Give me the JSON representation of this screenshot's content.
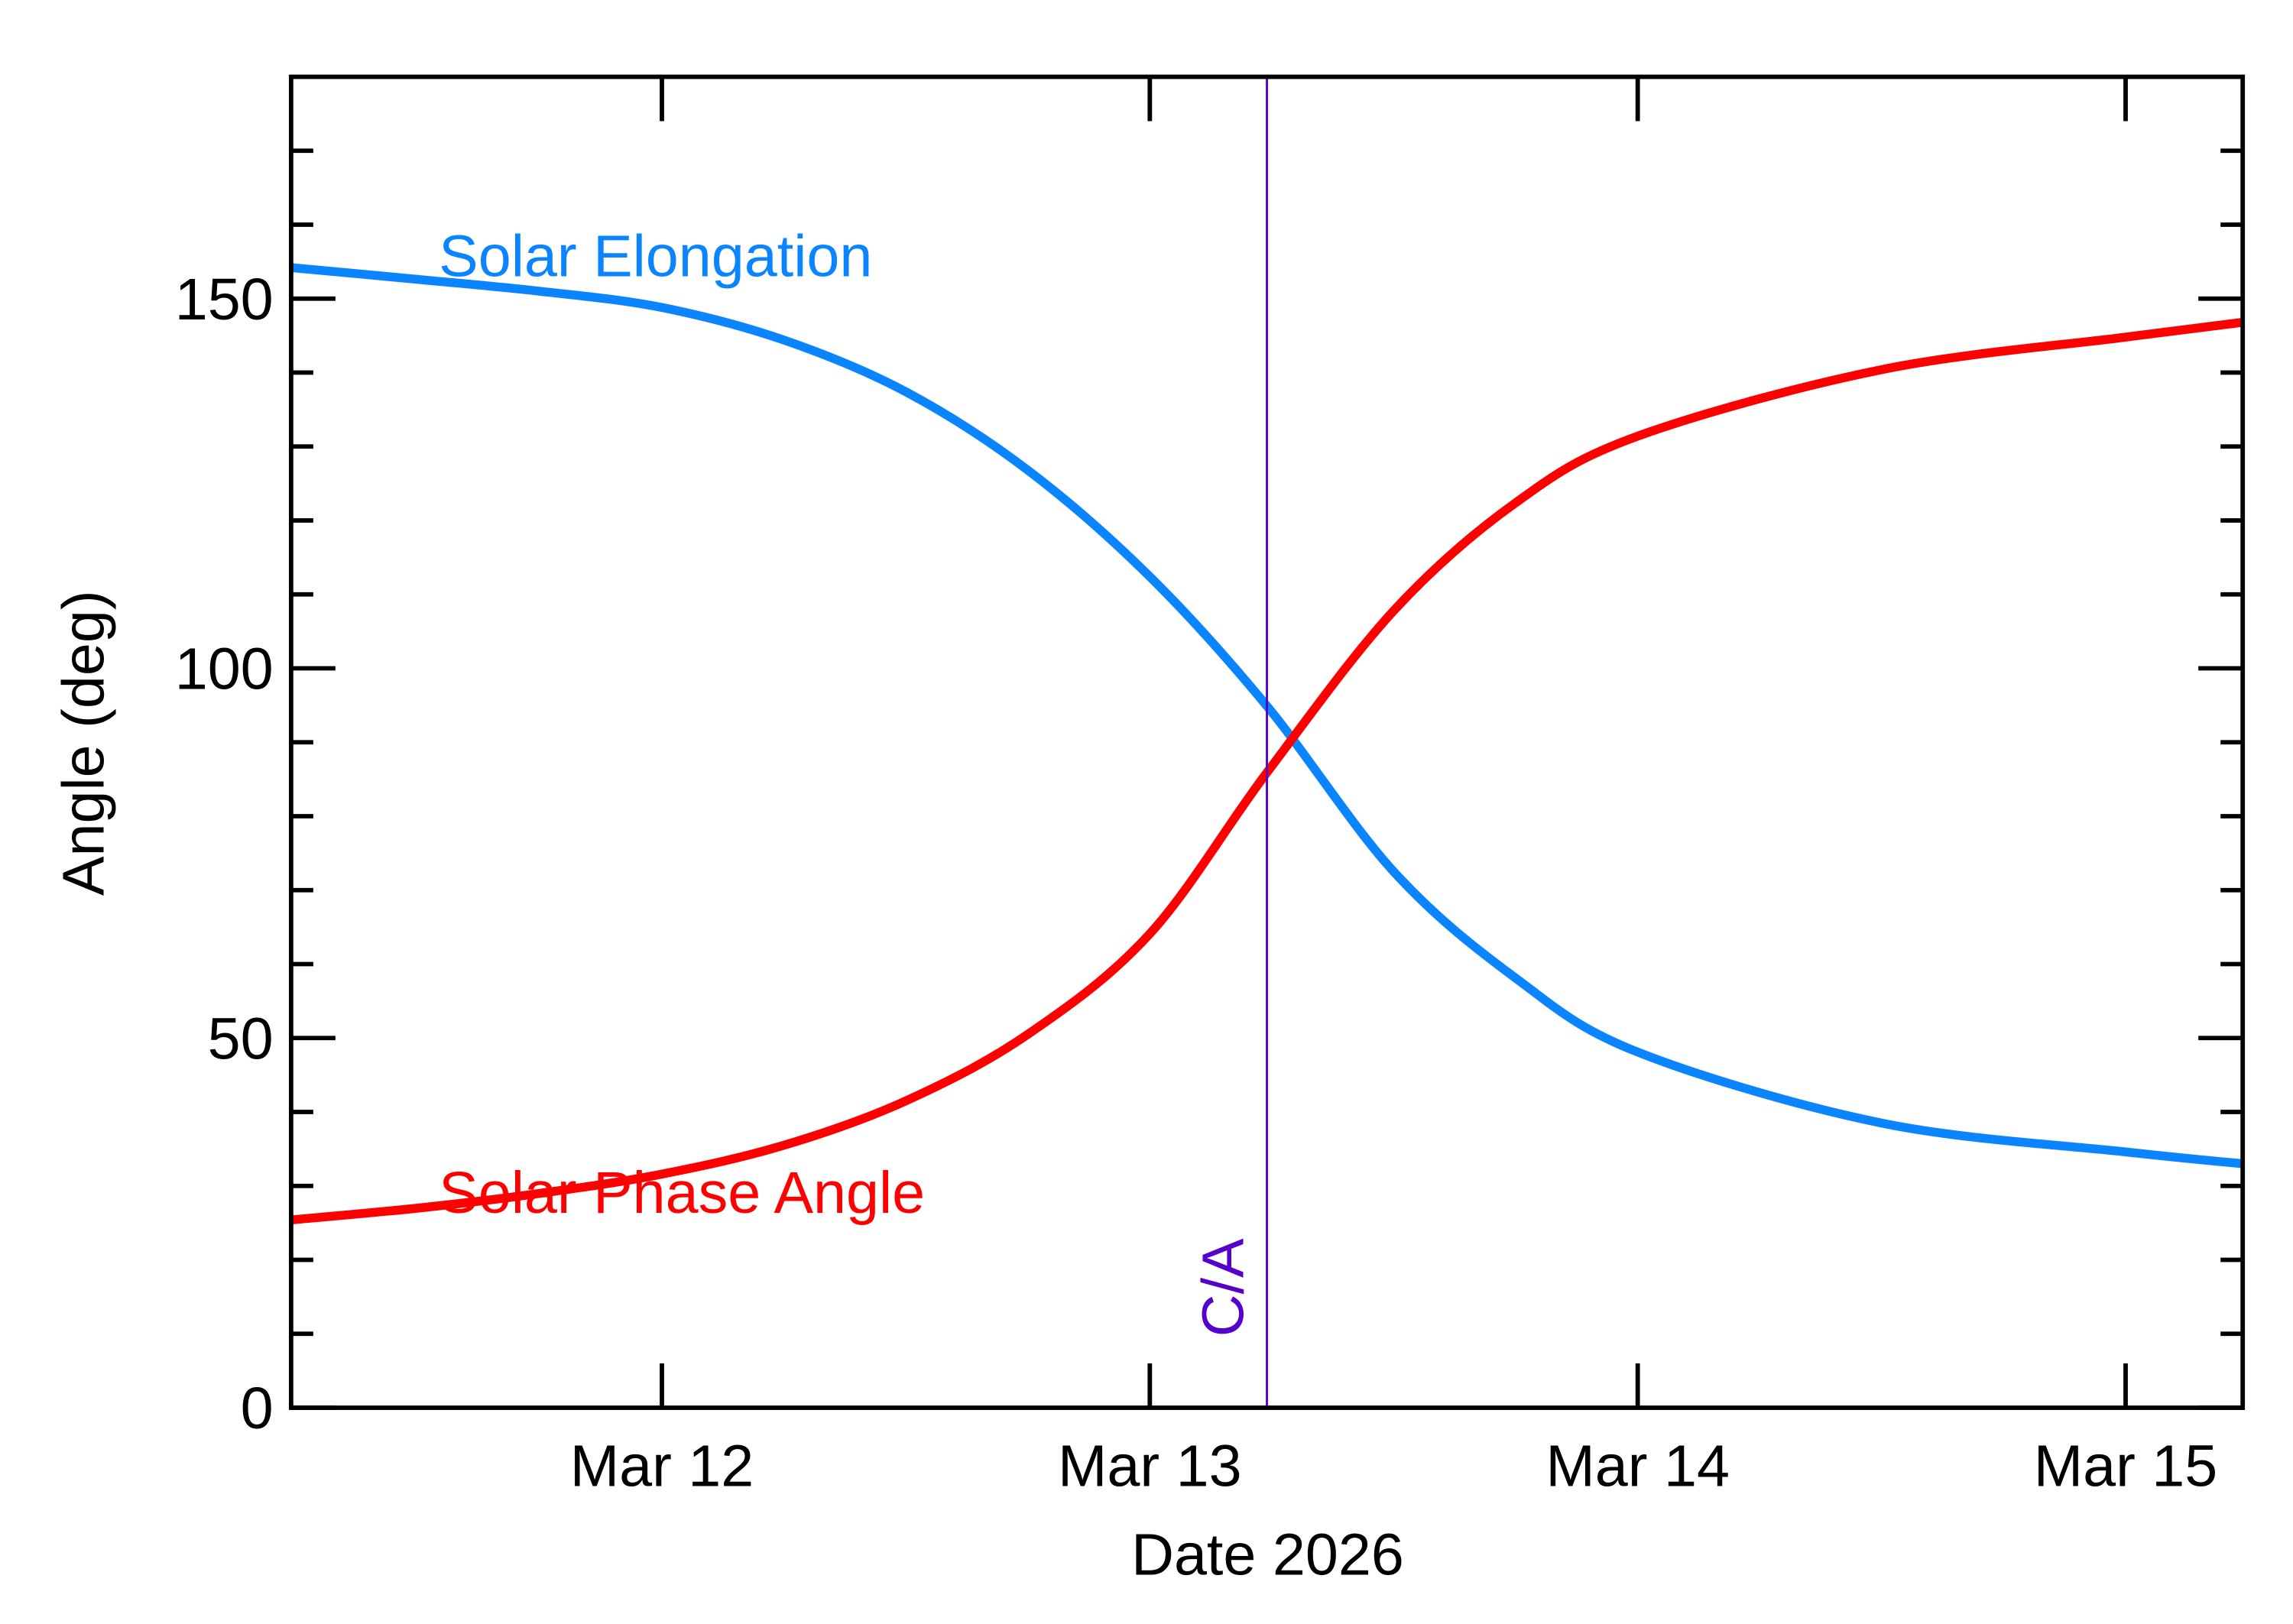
{
  "chart_data": {
    "type": "line",
    "xlabel": "Date 2026",
    "ylabel": "Angle (deg)",
    "x": [
      11.24,
      11.5,
      11.75,
      12,
      12.25,
      12.5,
      12.75,
      13,
      13.24,
      13.5,
      13.75,
      14,
      14.5,
      15,
      15.24
    ],
    "series": [
      {
        "name": "Solar Elongation",
        "color": "#0a84ff",
        "values": [
          154.2,
          152.6,
          151,
          148.8,
          144.4,
          137.4,
          126.8,
          112.4,
          94.9,
          72.5,
          58.1,
          48.1,
          38.5,
          34.6,
          33
        ]
      },
      {
        "name": "Solar Phase Angle",
        "color": "#ff0000",
        "values": [
          25.4,
          27,
          29,
          31.6,
          35.5,
          41.5,
          50.5,
          64.1,
          85.9,
          107.8,
          122.4,
          131.4,
          140.4,
          144.8,
          146.8
        ]
      }
    ],
    "vline": {
      "x": 13.24,
      "label": "C/A",
      "color": "#5500cc"
    },
    "xlim": [
      11.24,
      15.24
    ],
    "xticks": [
      {
        "value": 12,
        "label": "Mar 12"
      },
      {
        "value": 13,
        "label": "Mar 13"
      },
      {
        "value": 14,
        "label": "Mar 14"
      },
      {
        "value": 15,
        "label": "Mar 15"
      }
    ],
    "ylim": [
      0,
      180
    ],
    "yticks": [
      0,
      50,
      100,
      150
    ],
    "yminorticks": [
      10,
      20,
      30,
      40,
      60,
      70,
      80,
      90,
      110,
      120,
      130,
      140,
      160,
      170
    ],
    "grid": false
  }
}
